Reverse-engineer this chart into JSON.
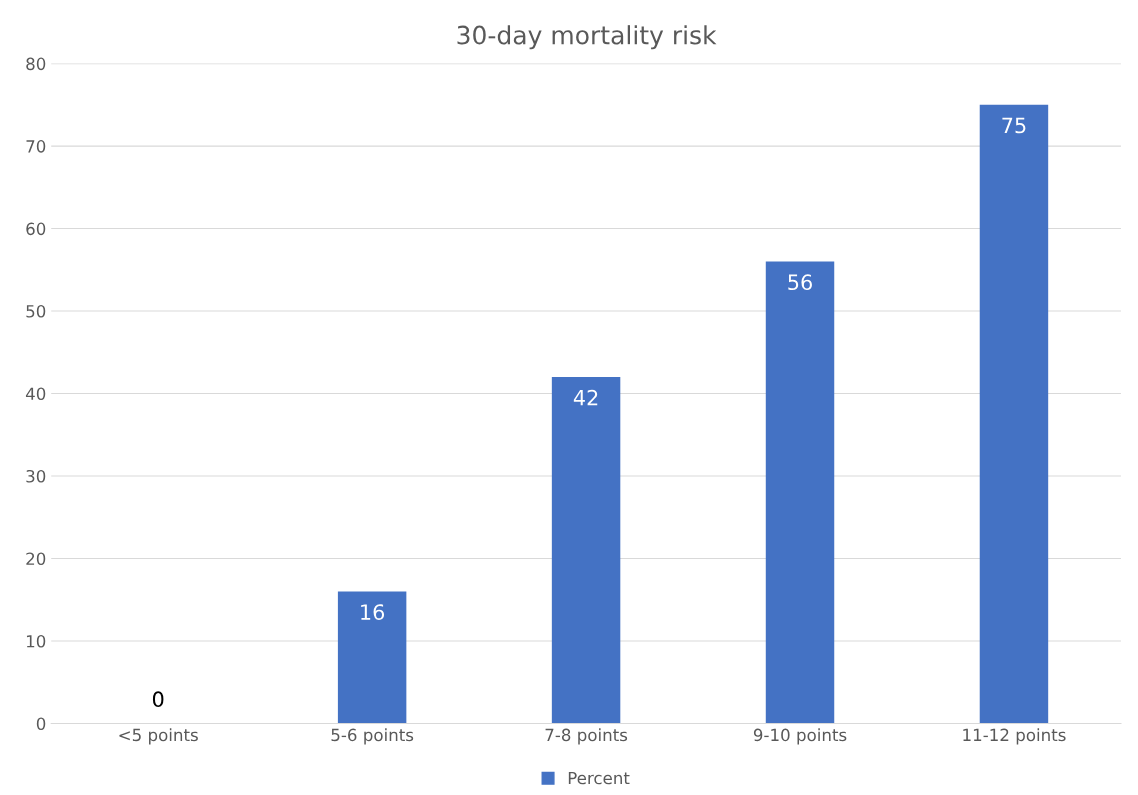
{
  "chart_data": {
    "type": "bar",
    "title": "30-day mortality risk",
    "categories": [
      "<5 points",
      "5-6 points",
      "7-8 points",
      "9-10 points",
      "11-12 points"
    ],
    "series": [
      {
        "name": "Percent",
        "color": "#4472c4",
        "values": [
          0,
          16,
          42,
          56,
          75
        ]
      }
    ],
    "ylim": [
      0,
      80
    ],
    "yticks": [
      0,
      10,
      20,
      30,
      40,
      50,
      60,
      70,
      80
    ],
    "grid": "y",
    "legend": "bottom",
    "data_labels": true
  }
}
